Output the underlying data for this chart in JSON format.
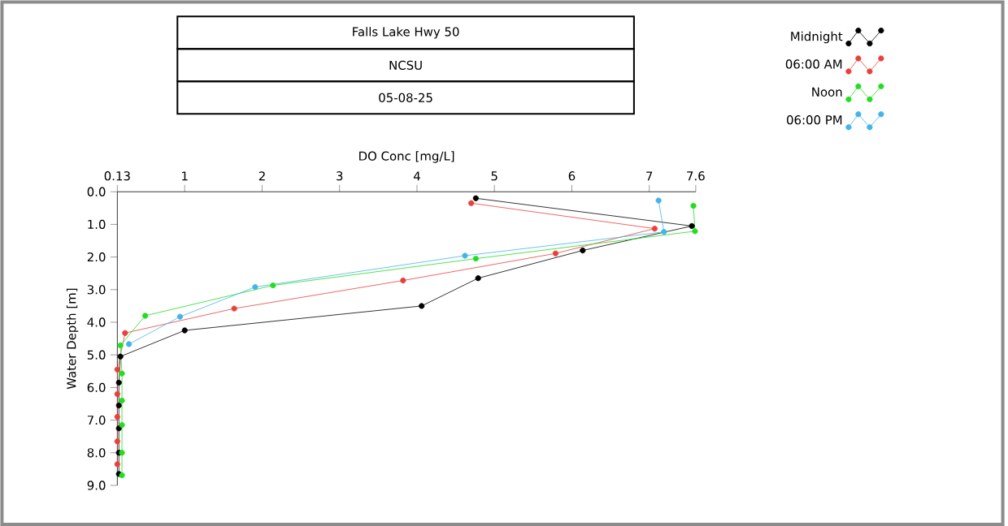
{
  "chart_data": {
    "type": "line",
    "title": "Falls Lake Hwy 50",
    "subtitle": "NCSU",
    "annotations": [
      "05-08-25"
    ],
    "xlabel": "DO Conc [mg/L]",
    "ylabel": "Water Depth [m]",
    "xlim": [
      0.13,
      7.6
    ],
    "xticks": [
      0.13,
      1,
      2,
      3,
      4,
      5,
      6,
      7,
      7.6
    ],
    "ylim": [
      9,
      0
    ],
    "yticks": [
      {
        "value": 0,
        "label": "0.0"
      },
      {
        "value": 1,
        "label": "1.0"
      },
      {
        "value": 2,
        "label": "2.0"
      },
      {
        "value": 3,
        "label": "3.0"
      },
      {
        "value": 4,
        "label": "4.0"
      },
      {
        "value": 5,
        "label": "5.0"
      },
      {
        "value": 6,
        "label": "6.0"
      },
      {
        "value": 7,
        "label": "7.0"
      },
      {
        "value": 8,
        "label": "8.0"
      },
      {
        "value": 9,
        "label": "9.0"
      }
    ],
    "grid": false,
    "legend": "top right",
    "marker": "circle",
    "line_style": "solid",
    "series": [
      {
        "name": "Midnight",
        "color": "#000000",
        "x": [
          4.76,
          7.55,
          6.14,
          4.79,
          4.06,
          1.0,
          0.17,
          0.15,
          0.15,
          0.15,
          0.15,
          0.15
        ],
        "values": [
          0.2,
          1.05,
          1.8,
          2.65,
          3.5,
          4.25,
          5.05,
          5.85,
          6.55,
          7.25,
          8.0,
          8.65
        ]
      },
      {
        "name": "06:00 AM",
        "color": "#e8413c",
        "x": [
          4.7,
          7.07,
          5.79,
          3.82,
          1.64,
          0.23,
          0.13,
          0.13,
          0.13,
          0.13,
          0.13
        ],
        "values": [
          0.35,
          1.13,
          1.89,
          2.72,
          3.58,
          4.33,
          5.45,
          6.2,
          6.9,
          7.65,
          8.35
        ]
      },
      {
        "name": "Noon",
        "color": "#22dd22",
        "x": [
          7.57,
          7.59,
          4.76,
          2.14,
          0.49,
          0.17,
          0.19,
          0.19,
          0.19,
          0.19,
          0.19
        ],
        "values": [
          0.43,
          1.21,
          2.05,
          2.87,
          3.8,
          4.71,
          5.57,
          6.4,
          7.15,
          8.0,
          8.69
        ]
      },
      {
        "name": "06:00 PM",
        "color": "#44b4e8",
        "x": [
          7.12,
          7.19,
          4.62,
          1.91,
          0.94,
          0.28
        ],
        "values": [
          0.27,
          1.23,
          1.96,
          2.92,
          3.83,
          4.67
        ]
      }
    ]
  }
}
